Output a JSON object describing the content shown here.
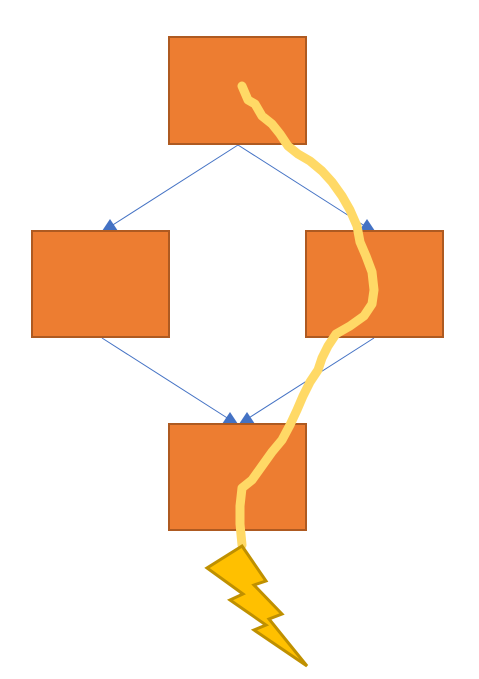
{
  "diagram": {
    "nodes": [
      {
        "id": "top",
        "label": ""
      },
      {
        "id": "left",
        "label": ""
      },
      {
        "id": "right",
        "label": ""
      },
      {
        "id": "bottom",
        "label": ""
      }
    ],
    "edges": [
      {
        "from": "top",
        "to": "left"
      },
      {
        "from": "top",
        "to": "right"
      },
      {
        "from": "left",
        "to": "bottom"
      },
      {
        "from": "right",
        "to": "bottom"
      }
    ],
    "colors": {
      "node_fill": "#ED7D31",
      "node_stroke": "#AE5A21",
      "edge": "#4472C4",
      "squiggle": "#FFD966",
      "bolt_fill": "#FFC000",
      "bolt_stroke": "#BF9000"
    },
    "icons": [
      "lightning-bolt-icon"
    ]
  }
}
